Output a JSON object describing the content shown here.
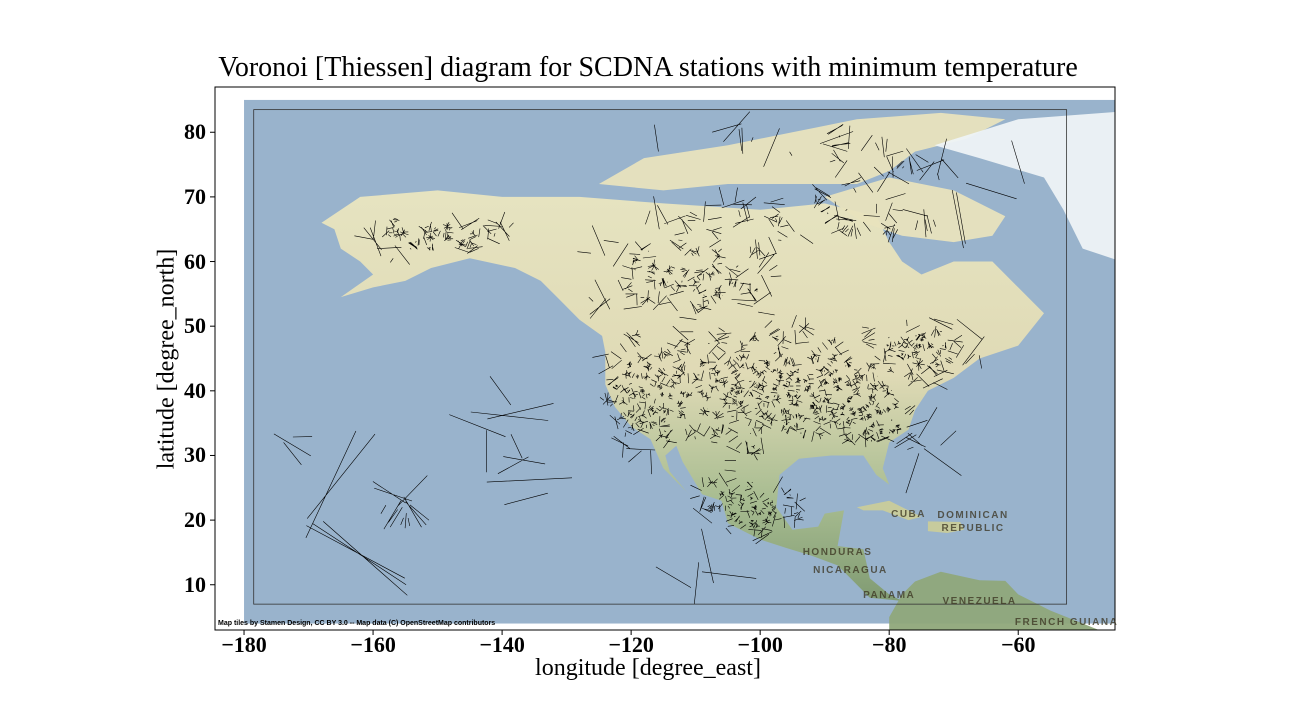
{
  "chart_data": {
    "type": "map",
    "title": "Voronoi [Thiessen] diagram for SCDNA stations with minimum temperature",
    "xlabel": "longitude [degree_east]",
    "ylabel": "latitude [degree_north]",
    "xlim": [
      -184.5,
      -45
    ],
    "ylim": [
      3,
      87
    ],
    "x_ticks": [
      -180,
      -160,
      -140,
      -120,
      -100,
      -80,
      -60
    ],
    "x_tick_labels": [
      "−180",
      "−160",
      "−140",
      "−120",
      "−100",
      "−80",
      "−60"
    ],
    "y_ticks": [
      10,
      20,
      30,
      40,
      50,
      60,
      70,
      80
    ],
    "y_tick_labels": [
      "10",
      "20",
      "30",
      "40",
      "50",
      "60",
      "70",
      "80"
    ],
    "voronoi_extent": {
      "lon": [
        -178.5,
        -52.5
      ],
      "lat": [
        7,
        83.5
      ]
    },
    "basemap_extent": {
      "lon": [
        -180,
        -45
      ],
      "lat": [
        4,
        85
      ]
    },
    "colors": {
      "ocean": "#99b3cc",
      "land_north": "#eae6c0",
      "land_south": "#8fa87a",
      "cell_edge": "#000000",
      "ice": "#eef3f6"
    },
    "attribution": "Map tiles by Stamen Design, CC BY 3.0 -- Map data (C) OpenStreetMap contributors",
    "place_labels": [
      {
        "text": "CUBA",
        "lon": -77,
        "lat": 20.8
      },
      {
        "text": "DOMINICAN",
        "lon": -67,
        "lat": 20.6
      },
      {
        "text": "REPUBLIC",
        "lon": -67,
        "lat": 18.6
      },
      {
        "text": "HONDURAS",
        "lon": -88,
        "lat": 14.9
      },
      {
        "text": "NICARAGUA",
        "lon": -86,
        "lat": 12.1
      },
      {
        "text": "PANAMA",
        "lon": -80,
        "lat": 8.3
      },
      {
        "text": "VENEZUELA",
        "lon": -66,
        "lat": 7.4
      },
      {
        "text": "FRENCH GUIANA",
        "lon": -52.5,
        "lat": 4.1
      }
    ]
  }
}
